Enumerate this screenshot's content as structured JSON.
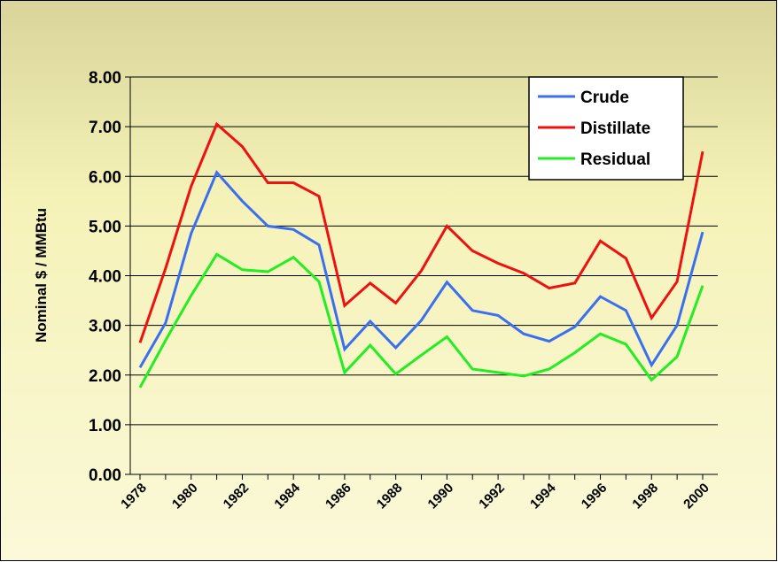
{
  "chart_data": {
    "type": "line",
    "y_label": "Nominal $ / MMBtu",
    "categories": [
      "1978",
      null,
      "1980",
      null,
      "1982",
      null,
      "1984",
      null,
      "1986",
      null,
      "1988",
      null,
      "1990",
      null,
      "1992",
      null,
      "1994",
      null,
      "1996",
      null,
      "1998",
      null,
      "2000"
    ],
    "series": [
      {
        "name": "Crude",
        "color": "#3a6ff0",
        "values": [
          2.15,
          3.05,
          4.85,
          6.08,
          5.5,
          5.0,
          4.93,
          4.62,
          2.52,
          3.08,
          2.55,
          3.1,
          3.87,
          3.3,
          3.2,
          2.83,
          2.68,
          2.97,
          3.58,
          3.3,
          2.2,
          3.0,
          4.88
        ]
      },
      {
        "name": "Distillate",
        "color": "#ee1111",
        "values": [
          2.65,
          4.15,
          5.8,
          7.05,
          6.6,
          5.87,
          5.87,
          5.6,
          3.4,
          3.85,
          3.45,
          4.1,
          5.0,
          4.5,
          4.25,
          4.05,
          3.75,
          3.85,
          4.7,
          4.35,
          3.15,
          3.88,
          6.5
        ]
      },
      {
        "name": "Residual",
        "color": "#22ee22",
        "values": [
          1.75,
          2.7,
          3.6,
          4.43,
          4.12,
          4.08,
          4.37,
          3.88,
          2.05,
          2.6,
          2.02,
          2.4,
          2.77,
          2.12,
          2.05,
          1.98,
          2.12,
          2.45,
          2.83,
          2.62,
          1.9,
          2.37,
          3.8
        ]
      }
    ],
    "ylim": [
      0,
      8
    ],
    "yticks": [
      {
        "value": 0,
        "label": "0.00"
      },
      {
        "value": 1,
        "label": "1.00"
      },
      {
        "value": 2,
        "label": "2.00"
      },
      {
        "value": 3,
        "label": "3.00"
      },
      {
        "value": 4,
        "label": "4.00"
      },
      {
        "value": 5,
        "label": "5.00"
      },
      {
        "value": 6,
        "label": "6.00"
      },
      {
        "value": 7,
        "label": "7.00"
      },
      {
        "value": 8,
        "label": "8.00"
      }
    ],
    "grid": true,
    "legend": "top-right"
  }
}
